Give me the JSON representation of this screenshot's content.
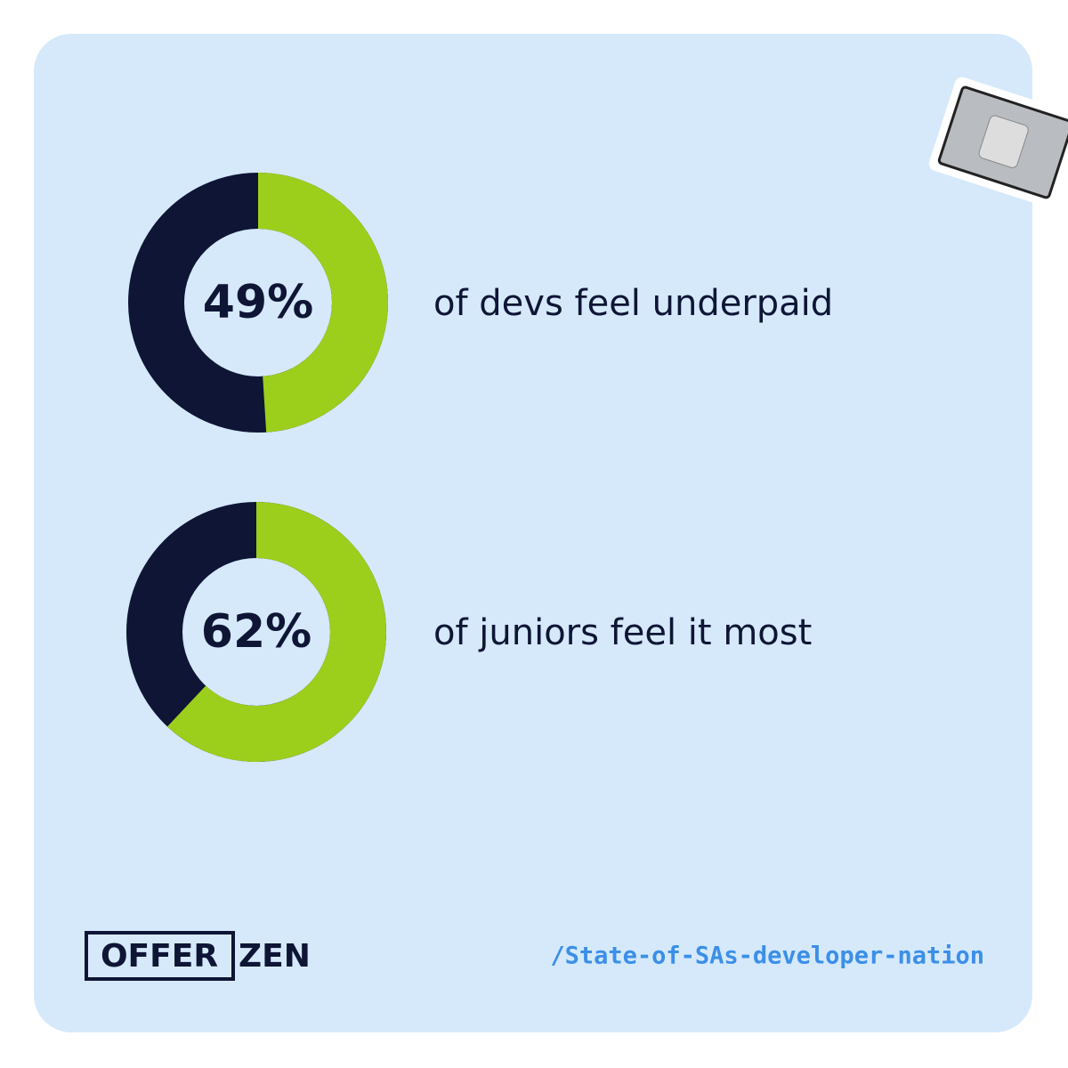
{
  "chart_data": [
    {
      "type": "donut",
      "title": "of devs feel underpaid",
      "values": [
        49
      ],
      "value_labels": [
        "49%"
      ],
      "color": "#9bcf1c",
      "track_color": "#0e1535"
    },
    {
      "type": "donut",
      "title": "of juniors feel it most",
      "values": [
        62
      ],
      "value_labels": [
        "62%"
      ],
      "color": "#9bcf1c",
      "track_color": "#0e1535"
    }
  ],
  "footer": {
    "logo_left": "OFFER",
    "logo_right": "ZEN",
    "link": "/State-of-SAs-developer-nation"
  }
}
